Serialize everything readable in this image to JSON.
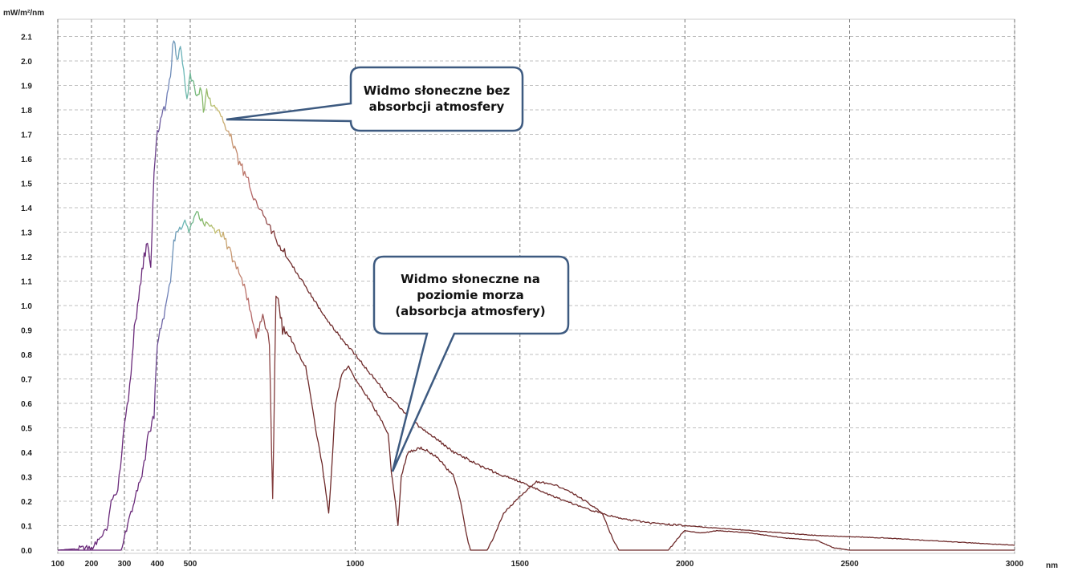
{
  "chart_data": {
    "type": "line",
    "title": "",
    "ylabel": "mW/m²/nm",
    "xlabel": "nm",
    "xlim": [
      100,
      3000
    ],
    "ylim": [
      0,
      2.15
    ],
    "x_ticks": [
      100,
      200,
      300,
      400,
      500,
      1000,
      1500,
      2000,
      2500,
      3000
    ],
    "y_ticks": [
      "0.0",
      "0.1",
      "0.2",
      "0.3",
      "0.4",
      "0.5",
      "0.6",
      "0.7",
      "0.8",
      "0.9",
      "1.0",
      "1.1",
      "1.2",
      "1.3",
      "1.4",
      "1.5",
      "1.6",
      "1.7",
      "1.8",
      "1.9",
      "2.0",
      "2.1"
    ],
    "grid": true,
    "series": [
      {
        "name": "Widmo słoneczne bez absorbcji atmosfery",
        "x": [
          100,
          200,
          230,
          250,
          260,
          280,
          300,
          320,
          330,
          340,
          350,
          360,
          370,
          380,
          390,
          400,
          410,
          420,
          430,
          440,
          450,
          460,
          470,
          480,
          490,
          500,
          510,
          520,
          530,
          540,
          550,
          560,
          570,
          580,
          590,
          600,
          620,
          650,
          680,
          700,
          750,
          800,
          850,
          900,
          950,
          1000,
          1100,
          1200,
          1300,
          1400,
          1500,
          1600,
          1700,
          1800,
          1900,
          2000,
          2200,
          2400,
          2600,
          2800,
          3000
        ],
        "y": [
          0,
          0.01,
          0.05,
          0.1,
          0.2,
          0.25,
          0.5,
          0.7,
          0.9,
          1.0,
          1.1,
          1.2,
          1.25,
          1.15,
          1.55,
          1.7,
          1.75,
          1.8,
          1.85,
          1.95,
          2.1,
          2.0,
          2.05,
          1.95,
          1.85,
          1.95,
          1.9,
          1.85,
          1.9,
          1.8,
          1.88,
          1.85,
          1.8,
          1.82,
          1.78,
          1.75,
          1.7,
          1.58,
          1.5,
          1.42,
          1.3,
          1.18,
          1.08,
          0.97,
          0.88,
          0.8,
          0.63,
          0.5,
          0.4,
          0.33,
          0.28,
          0.22,
          0.17,
          0.13,
          0.11,
          0.1,
          0.08,
          0.06,
          0.05,
          0.035,
          0.02
        ]
      },
      {
        "name": "Widmo słoneczne na poziomie morza (absorbcja atmosfery)",
        "x": [
          100,
          290,
          300,
          310,
          320,
          330,
          340,
          350,
          360,
          370,
          380,
          390,
          400,
          420,
          440,
          450,
          460,
          480,
          500,
          520,
          540,
          560,
          580,
          600,
          620,
          640,
          660,
          680,
          700,
          720,
          740,
          750,
          760,
          770,
          780,
          800,
          820,
          850,
          880,
          900,
          920,
          930,
          940,
          960,
          980,
          1000,
          1050,
          1100,
          1110,
          1120,
          1130,
          1140,
          1160,
          1200,
          1250,
          1300,
          1320,
          1340,
          1350,
          1400,
          1420,
          1450,
          1500,
          1550,
          1600,
          1650,
          1700,
          1750,
          1780,
          1800,
          1850,
          1900,
          1950,
          1980,
          2000,
          2050,
          2100,
          2200,
          2300,
          2400,
          2450,
          2500,
          2600,
          2800,
          2900,
          3000
        ],
        "y": [
          0,
          0,
          0.05,
          0.1,
          0.15,
          0.2,
          0.25,
          0.3,
          0.35,
          0.45,
          0.5,
          0.55,
          0.85,
          0.95,
          1.1,
          1.25,
          1.3,
          1.35,
          1.3,
          1.38,
          1.33,
          1.33,
          1.3,
          1.28,
          1.22,
          1.15,
          1.1,
          1.0,
          0.88,
          0.95,
          0.85,
          0.2,
          1.05,
          1.0,
          0.9,
          0.88,
          0.82,
          0.75,
          0.5,
          0.35,
          0.15,
          0.35,
          0.6,
          0.72,
          0.75,
          0.7,
          0.6,
          0.48,
          0.32,
          0.22,
          0.1,
          0.3,
          0.4,
          0.42,
          0.38,
          0.3,
          0.2,
          0.05,
          0,
          0,
          0.05,
          0.15,
          0.22,
          0.28,
          0.27,
          0.24,
          0.2,
          0.15,
          0.05,
          0,
          0,
          0,
          0,
          0.05,
          0.08,
          0.07,
          0.08,
          0.07,
          0.05,
          0.04,
          0.01,
          0,
          0,
          0,
          0,
          0
        ]
      }
    ],
    "annotations": [
      {
        "text_lines": [
          "Widmo słoneczne bez",
          "absorbcji atmosfery"
        ],
        "target_series": 0
      },
      {
        "text_lines": [
          "Widmo słoneczne na",
          "poziomie morza",
          "(absorbcja atmosfery)"
        ],
        "target_series": 1
      }
    ],
    "colors": {
      "violet": "#6a2a7a",
      "blue": "#6f7fb8",
      "cyan": "#6ab8b8",
      "green": "#7ab86a",
      "yellow": "#c8c070",
      "orange": "#c89a70",
      "red": "#b86a6a",
      "darkred": "#6e2a2a",
      "callout_border": "#3d5a80"
    }
  }
}
